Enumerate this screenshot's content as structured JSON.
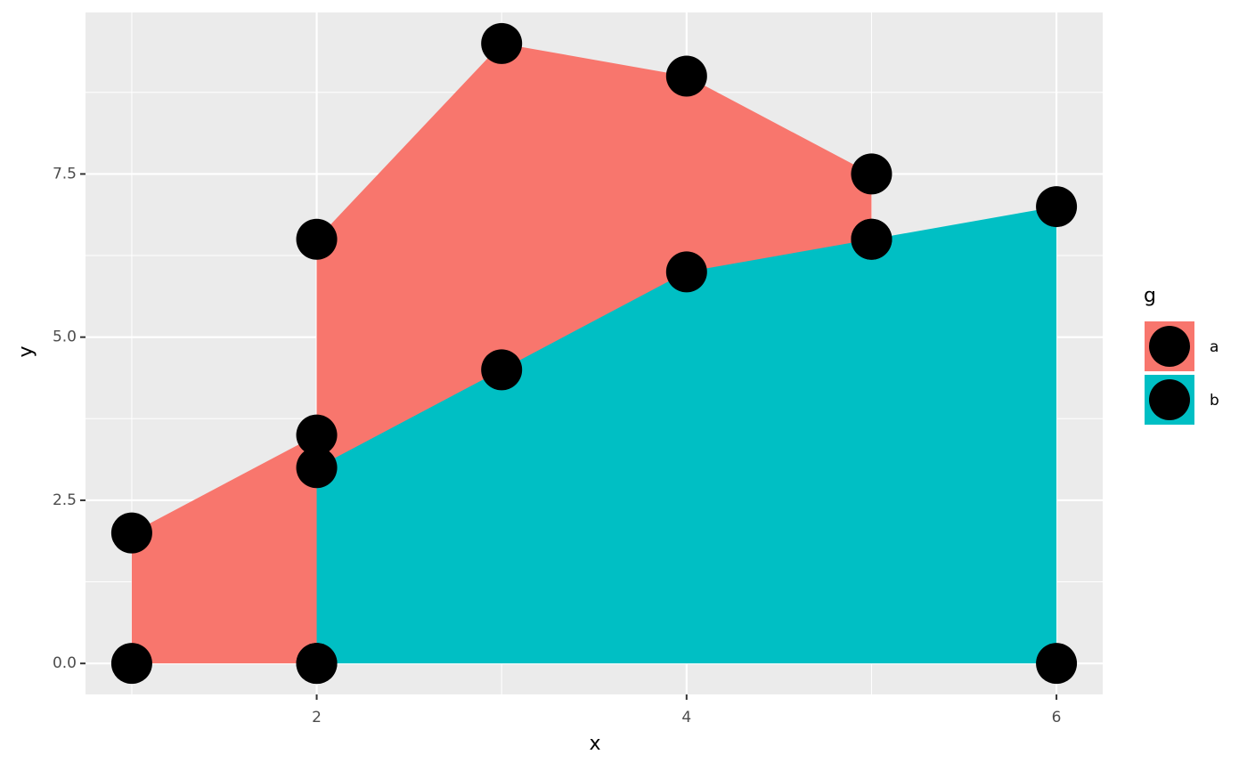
{
  "chart_data": {
    "type": "polygon",
    "x_label": "x",
    "y_label": "y",
    "xlim": [
      0.75,
      6.25
    ],
    "ylim": [
      -0.475,
      9.975
    ],
    "xticks": [
      2,
      4,
      6
    ],
    "yticks": [
      {
        "value": 0,
        "label": "0.0"
      },
      2.5,
      {
        "value": 5,
        "label": "5.0"
      },
      7.5
    ],
    "grid": true,
    "legend_title": "g",
    "point_color": "#000000",
    "series": [
      {
        "name": "a",
        "color": "#f8766d",
        "x": [
          1,
          1,
          2,
          2,
          3,
          4,
          5,
          5,
          2
        ],
        "values": [
          0,
          2,
          3.5,
          6.5,
          9.5,
          9,
          7.5,
          6.5,
          0
        ]
      },
      {
        "name": "b",
        "color": "#00bfc4",
        "x": [
          2,
          2,
          3,
          4,
          5,
          6,
          6
        ],
        "values": [
          0,
          3,
          4.5,
          6,
          6.5,
          7,
          0
        ]
      }
    ]
  }
}
